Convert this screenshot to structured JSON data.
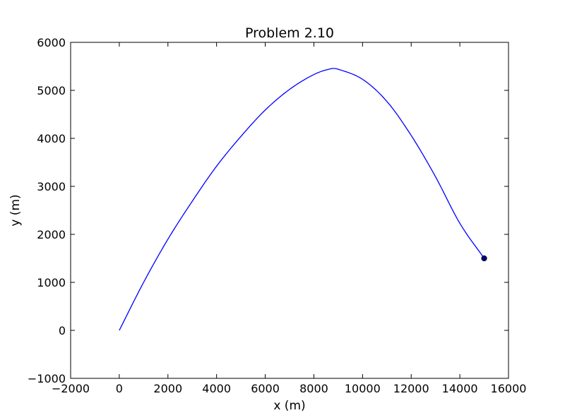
{
  "chart_data": {
    "type": "line",
    "title": "Problem 2.10",
    "xlabel": "x (m)",
    "ylabel": "y (m)",
    "xlim": [
      -2000,
      16000
    ],
    "ylim": [
      -1000,
      6000
    ],
    "grid": false,
    "x_ticks": [
      "−2000",
      "0",
      "2000",
      "4000",
      "6000",
      "8000",
      "10000",
      "12000",
      "14000",
      "16000"
    ],
    "y_ticks": [
      "−1000",
      "0",
      "1000",
      "2000",
      "3000",
      "4000",
      "5000",
      "6000"
    ],
    "series": [
      {
        "color": "#0000ff",
        "x": [
          0,
          1000,
          2000,
          3000,
          4000,
          5000,
          6000,
          7000,
          8000,
          8700,
          9000,
          10000,
          11000,
          12000,
          13000,
          14000,
          15000
        ],
        "y": [
          0,
          1000,
          1900,
          2690,
          3420,
          4040,
          4590,
          5020,
          5330,
          5450,
          5440,
          5230,
          4770,
          4060,
          3200,
          2230,
          1500
        ]
      }
    ],
    "endpoint": {
      "x": 15000,
      "y": 1500,
      "color": "#00008b"
    }
  }
}
